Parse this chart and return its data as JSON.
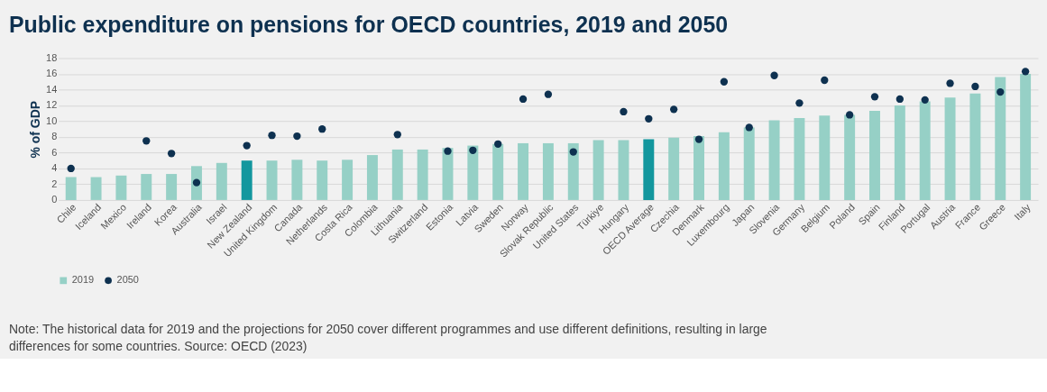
{
  "chart_data": {
    "type": "bar",
    "title": "Public expenditure on pensions for OECD countries, 2019 and 2050",
    "ylabel": "% of GDP",
    "categories": [
      "Chile",
      "Iceland",
      "Mexico",
      "Ireland",
      "Korea",
      "Australia",
      "Israel",
      "New Zealand",
      "United Kingdom",
      "Canada",
      "Netherlands",
      "Costa Rica",
      "Colombia",
      "Lithuania",
      "Switzerland",
      "Estonia",
      "Latvia",
      "Sweden",
      "Norway",
      "Slovak Republic",
      "United States",
      "Türkiye",
      "Hungary",
      "OECD Average",
      "Czechia",
      "Denmark",
      "Luxembourg",
      "Japan",
      "Slovenia",
      "Germany",
      "Belgium",
      "Poland",
      "Spain",
      "Finland",
      "Portugal",
      "Austria",
      "France",
      "Greece",
      "Italy"
    ],
    "series": [
      {
        "name": "2019",
        "color": "#96d0c6",
        "colors": [
          "#96d0c6",
          "#96d0c6",
          "#96d0c6",
          "#96d0c6",
          "#96d0c6",
          "#96d0c6",
          "#96d0c6",
          "#13979e",
          "#96d0c6",
          "#96d0c6",
          "#96d0c6",
          "#96d0c6",
          "#96d0c6",
          "#96d0c6",
          "#96d0c6",
          "#96d0c6",
          "#96d0c6",
          "#96d0c6",
          "#96d0c6",
          "#96d0c6",
          "#96d0c6",
          "#96d0c6",
          "#96d0c6",
          "#13979e",
          "#96d0c6",
          "#96d0c6",
          "#96d0c6",
          "#96d0c6",
          "#96d0c6",
          "#96d0c6",
          "#96d0c6",
          "#96d0c6",
          "#96d0c6",
          "#96d0c6",
          "#96d0c6",
          "#96d0c6",
          "#96d0c6",
          "#96d0c6",
          "#96d0c6"
        ],
        "values": [
          2.9,
          2.9,
          3.1,
          3.3,
          3.3,
          4.3,
          4.7,
          5.0,
          5.0,
          5.1,
          5.0,
          5.1,
          5.7,
          6.4,
          6.4,
          6.6,
          6.9,
          7.1,
          7.2,
          7.2,
          7.2,
          7.6,
          7.6,
          7.7,
          7.9,
          8.1,
          8.6,
          9.2,
          10.1,
          10.4,
          10.7,
          10.8,
          11.3,
          12.0,
          12.5,
          13.0,
          13.5,
          15.6,
          16.0
        ]
      },
      {
        "name": "2050",
        "type": "scatter",
        "color": "#0e3150",
        "x": [
          "Chile",
          "Iceland",
          "Mexico",
          "Ireland",
          "Korea",
          "Australia",
          "Israel",
          "New Zealand",
          "United Kingdom",
          "Canada",
          "Netherlands",
          "Costa Rica",
          "Colombia",
          "Lithuania",
          "Switzerland",
          "Estonia",
          "Latvia",
          "Sweden",
          "Norway",
          "Slovak Republic",
          "United States",
          "Türkiye",
          "Hungary",
          "OECD Average",
          "Czechia",
          "Denmark",
          "Luxembourg",
          "Japan",
          "Slovenia",
          "Germany",
          "Belgium",
          "Poland",
          "Spain",
          "Finland",
          "Portugal",
          "Austria",
          "France",
          "Greece",
          "Italy"
        ],
        "values": [
          4.0,
          null,
          null,
          7.5,
          5.9,
          2.2,
          null,
          6.9,
          8.2,
          8.1,
          9.0,
          null,
          null,
          8.3,
          null,
          6.2,
          6.3,
          7.1,
          12.8,
          13.4,
          6.1,
          null,
          11.2,
          10.3,
          11.5,
          7.7,
          15.0,
          9.2,
          15.8,
          12.3,
          15.2,
          10.8,
          13.1,
          12.8,
          12.7,
          14.8,
          14.4,
          13.7,
          16.3
        ]
      }
    ],
    "ylim": [
      0,
      18
    ],
    "yticks": [
      0,
      2,
      4,
      6,
      8,
      10,
      12,
      14,
      16,
      18
    ],
    "grid": "y",
    "legend": "bottom",
    "marker": "circle",
    "annotations": [
      "Note: The historical data for 2019 and the projections for 2050 cover different programmes and use different definitions, resulting in large differences for some countries. Source: OECD (2023)"
    ]
  }
}
